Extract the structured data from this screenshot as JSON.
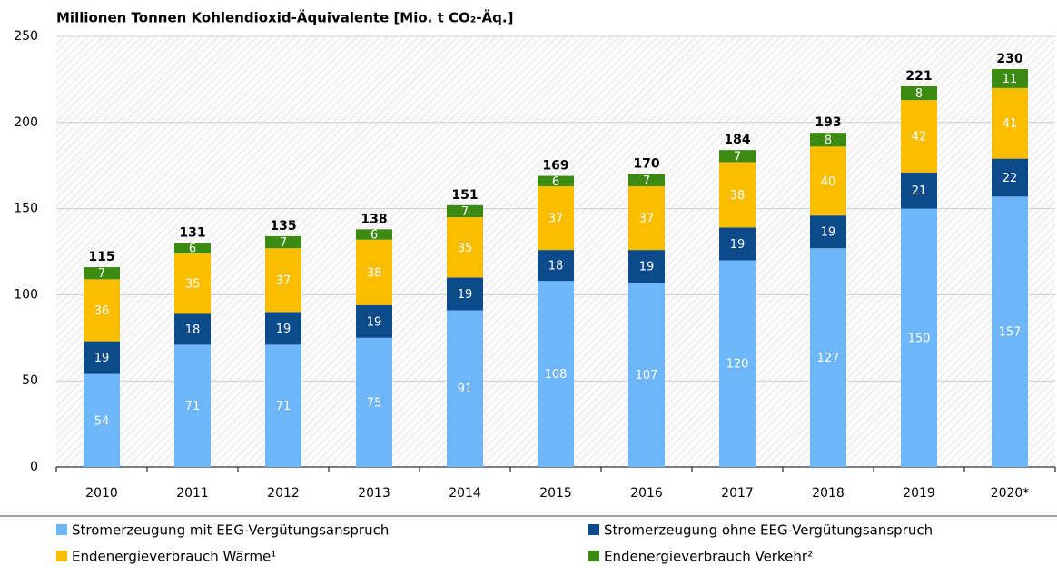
{
  "chart_data": {
    "type": "stacked_bar",
    "title": "Millionen Tonnen Kohlendioxid-Äquivalente [Mio. t CO₂-Äq.]",
    "categories": [
      "2010",
      "2011",
      "2012",
      "2013",
      "2014",
      "2015",
      "2016",
      "2017",
      "2018",
      "2019",
      "2020*"
    ],
    "series": [
      {
        "name": "Stromerzeugung mit EEG-Vergütungsanspruch",
        "color": "#6db6fa",
        "values": [
          54,
          71,
          71,
          75,
          91,
          108,
          107,
          120,
          127,
          150,
          157
        ]
      },
      {
        "name": "Stromerzeugung ohne EEG-Vergütungsanspruch",
        "color": "#0b4a8b",
        "values": [
          19,
          18,
          19,
          19,
          19,
          18,
          19,
          19,
          19,
          21,
          22
        ]
      },
      {
        "name": "Endenergieverbrauch Wärme¹",
        "color": "#fbbd00",
        "values": [
          36,
          35,
          37,
          38,
          35,
          37,
          37,
          38,
          40,
          42,
          41
        ]
      },
      {
        "name": "Endenergieverbrauch Verkehr²",
        "color": "#3b8a12",
        "values": [
          7,
          6,
          7,
          6,
          7,
          6,
          7,
          7,
          8,
          8,
          11
        ]
      }
    ],
    "totals": [
      115,
      131,
      135,
      138,
      151,
      169,
      170,
      184,
      193,
      221,
      230
    ],
    "ylim": [
      0,
      250
    ],
    "yticks": [
      0,
      50,
      100,
      150,
      200,
      250
    ],
    "grid": true
  }
}
